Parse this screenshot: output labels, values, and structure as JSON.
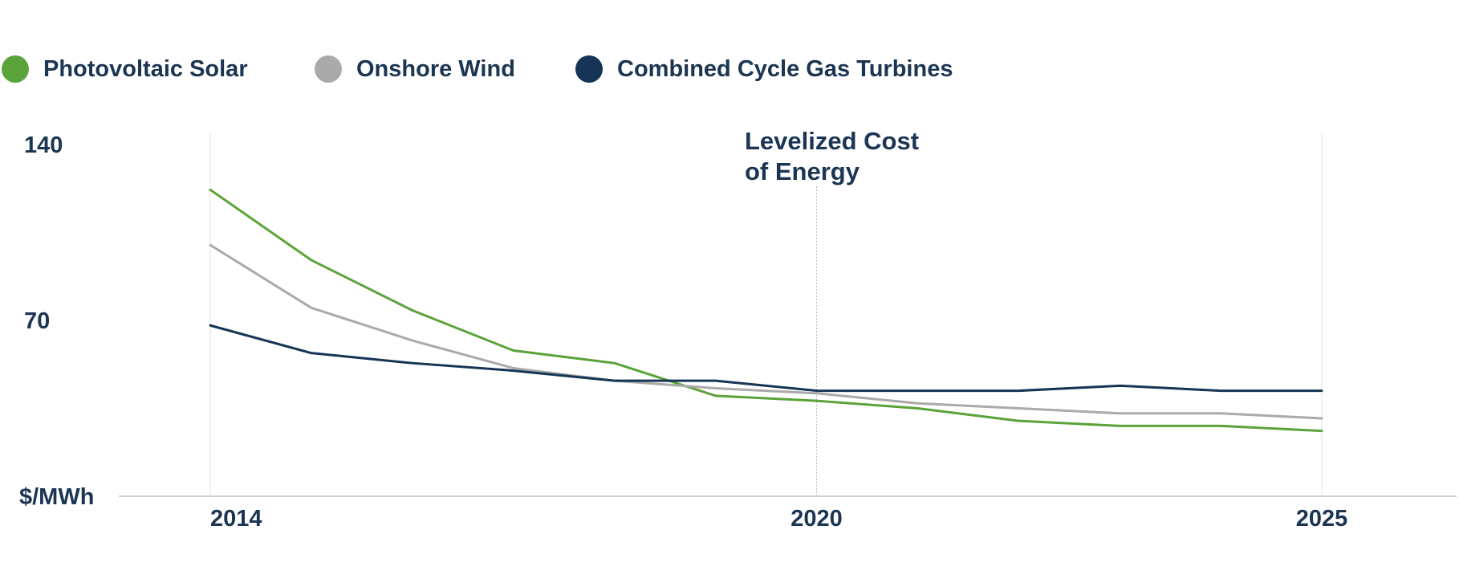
{
  "chart_data": {
    "type": "line",
    "title": "",
    "xlabel": "",
    "ylabel": "$/MWh",
    "x": [
      2014,
      2015,
      2016,
      2017,
      2018,
      2019,
      2020,
      2021,
      2022,
      2023,
      2024,
      2025
    ],
    "xlim": [
      2014,
      2025
    ],
    "ylim": [
      0,
      140
    ],
    "x_ticks": [
      "2014",
      "2020",
      "2025"
    ],
    "y_ticks": [
      "140",
      "70"
    ],
    "grid": "vertical lines at 2014, 2020, 2025",
    "legend_position": "top-left",
    "annotation": {
      "line1": "Levelized Cost",
      "line2": "of Energy"
    },
    "series": [
      {
        "name": "Photovoltaic Solar",
        "color": "#5aa33a",
        "values": [
          122,
          94,
          74,
          58,
          53,
          40,
          38,
          35,
          30,
          28,
          28,
          26
        ]
      },
      {
        "name": "Onshore Wind",
        "color": "#aaaaaa",
        "values": [
          100,
          75,
          62,
          51,
          46,
          43,
          41,
          37,
          35,
          33,
          33,
          31
        ]
      },
      {
        "name": "Combined Cycle Gas Turbines",
        "color": "#163556",
        "values": [
          68,
          57,
          53,
          50,
          46,
          46,
          42,
          42,
          42,
          44,
          42,
          42
        ]
      }
    ]
  }
}
